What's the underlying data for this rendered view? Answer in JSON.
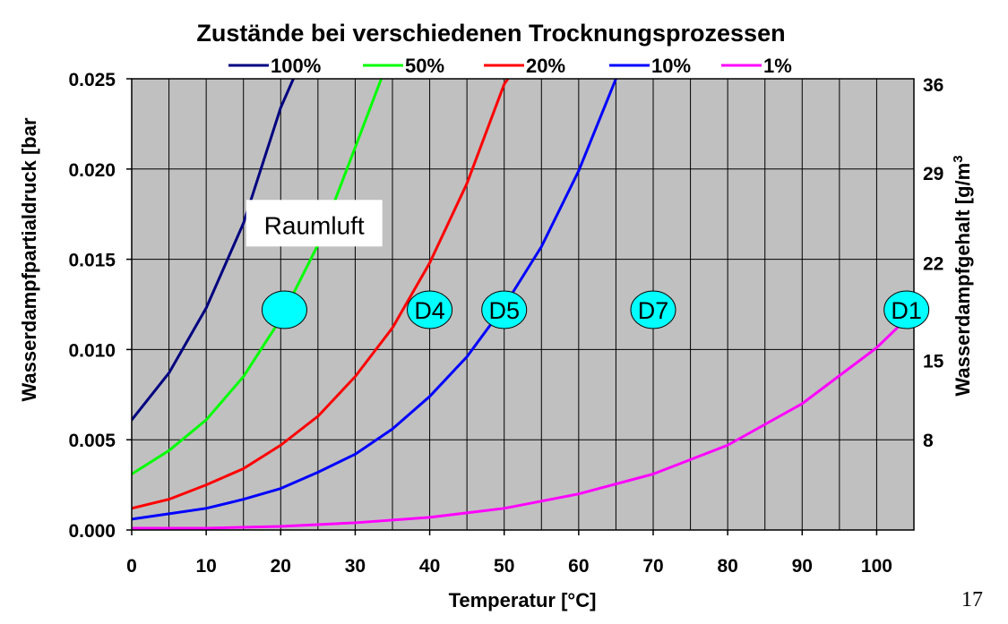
{
  "chart_data": {
    "type": "line",
    "title": "Zustände bei verschiedenen Trocknungsprozessen",
    "xlabel": "Temperatur [°C]",
    "ylabel": "Wasserdampfpartialdruck [bar",
    "y2label": "Wasserdampfgehalt [g/m",
    "y2label_superscript": "3",
    "xlim": [
      0,
      105
    ],
    "ylim": [
      0,
      0.025
    ],
    "x_ticks": [
      0,
      10,
      20,
      30,
      40,
      50,
      60,
      70,
      80,
      90,
      100
    ],
    "x_tick_labels": [
      "0",
      "10",
      "20",
      "30",
      "40",
      "50",
      "60",
      "70",
      "80",
      "90",
      "100"
    ],
    "y_ticks": [
      0,
      0.005,
      0.01,
      0.015,
      0.02,
      0.025
    ],
    "y_tick_labels": [
      "0.000",
      "0.005",
      "0.010",
      "0.015",
      "0.020",
      "0.025"
    ],
    "y2_ticks": [
      {
        "label": "8",
        "y": 0.005
      },
      {
        "label": "15",
        "y": 0.0094
      },
      {
        "label": "22",
        "y": 0.0148
      },
      {
        "label": "29",
        "y": 0.0198
      },
      {
        "label": "36",
        "y": 0.0247
      }
    ],
    "grid": true,
    "legend_position": "top",
    "plot_background": "#C0C0C0",
    "x": [
      0,
      5,
      10,
      15,
      20,
      25,
      30,
      35,
      40,
      45,
      50,
      55,
      60,
      65,
      70,
      75,
      80,
      85,
      90,
      95,
      100,
      105
    ],
    "series": [
      {
        "name": "100%",
        "color": "#000080",
        "x": [
          0,
          5,
          10,
          15,
          20,
          21.7
        ],
        "values": [
          0.0061,
          0.0087,
          0.0123,
          0.017,
          0.0234,
          0.025
        ]
      },
      {
        "name": "50%",
        "color": "#00FF00",
        "x": [
          0,
          5,
          10,
          15,
          20,
          25,
          30,
          33.5
        ],
        "values": [
          0.0031,
          0.0044,
          0.0061,
          0.0085,
          0.0117,
          0.0158,
          0.0212,
          0.025
        ]
      },
      {
        "name": "20%",
        "color": "#FF0000",
        "x": [
          0,
          5,
          10,
          15,
          20,
          25,
          30,
          35,
          40,
          45,
          50,
          50.5
        ],
        "values": [
          0.0012,
          0.0017,
          0.0025,
          0.0034,
          0.0047,
          0.0063,
          0.0085,
          0.0112,
          0.0148,
          0.0192,
          0.0247,
          0.025
        ]
      },
      {
        "name": "10%",
        "color": "#0000FF",
        "x": [
          0,
          5,
          10,
          15,
          20,
          25,
          30,
          35,
          40,
          45,
          50,
          55,
          60,
          65,
          65.5
        ],
        "values": [
          0.0006,
          0.0009,
          0.0012,
          0.0017,
          0.0023,
          0.0032,
          0.0042,
          0.0056,
          0.0074,
          0.0096,
          0.0124,
          0.0157,
          0.0199,
          0.025,
          0.0255
        ]
      },
      {
        "name": "1%",
        "color": "#FF00FF",
        "x": [
          0,
          10,
          20,
          30,
          40,
          50,
          60,
          70,
          80,
          90,
          100,
          105
        ],
        "values": [
          0.0001,
          0.0001,
          0.0002,
          0.0004,
          0.0007,
          0.0012,
          0.002,
          0.0031,
          0.0047,
          0.007,
          0.0101,
          0.0121
        ]
      }
    ],
    "annotations": [
      {
        "text": "Raumluft",
        "x": 24.5,
        "y": 0.0169
      }
    ],
    "markers": [
      {
        "label": "",
        "x": 20.5,
        "y": 0.0122,
        "color": "#00FFFF"
      },
      {
        "label": "D4",
        "x": 40,
        "y": 0.0122,
        "color": "#00FFFF"
      },
      {
        "label": "D5",
        "x": 50,
        "y": 0.0122,
        "color": "#00FFFF"
      },
      {
        "label": "D7",
        "x": 70,
        "y": 0.0122,
        "color": "#00FFFF"
      },
      {
        "label": "D1",
        "x": 104,
        "y": 0.0122,
        "color": "#00FFFF"
      }
    ]
  },
  "page_number": "17"
}
